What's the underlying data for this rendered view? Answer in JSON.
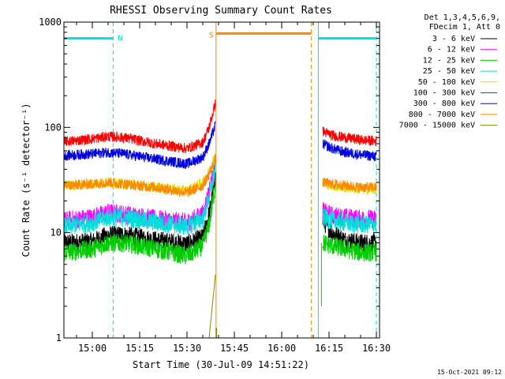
{
  "chart_data": {
    "type": "line",
    "title": "RHESSI Observing Summary Count Rates",
    "xlabel": "Start Time (30-Jul-09 14:51:22)",
    "ylabel": "Count Rate (s⁻¹ detector⁻¹)",
    "y_scale": "log",
    "ylim": [
      1,
      1000
    ],
    "xlim_minutes": [
      891,
      991
    ],
    "x_ticks": [
      {
        "label": "15:00",
        "minute": 900
      },
      {
        "label": "15:15",
        "minute": 915
      },
      {
        "label": "15:30",
        "minute": 930
      },
      {
        "label": "15:45",
        "minute": 945
      },
      {
        "label": "16:00",
        "minute": 960
      },
      {
        "label": "16:15",
        "minute": 975
      },
      {
        "label": "16:30",
        "minute": 990
      }
    ],
    "y_ticks": [
      {
        "label": "1",
        "value": 1
      },
      {
        "label": "10",
        "value": 10
      },
      {
        "label": "100",
        "value": 100
      },
      {
        "label": "1000",
        "value": 1000
      }
    ],
    "legend_header": [
      "Det 1,3,4,5,6,9,",
      "FDecim 1, Att 0"
    ],
    "legend_position": "top-right-outside",
    "series": [
      {
        "name": "3 - 6 keV",
        "color": "#000000",
        "x": [
          891,
          900,
          905,
          910,
          920,
          930,
          935,
          937,
          939,
          973,
          976,
          980,
          985,
          990
        ],
        "y": [
          8,
          8.2,
          9.5,
          9.5,
          8.5,
          7.8,
          9,
          15,
          33,
          13,
          10,
          8.5,
          8,
          8
        ]
      },
      {
        "name": "6 - 12 keV",
        "color": "#ff00ff",
        "x": [
          891,
          900,
          905,
          910,
          920,
          930,
          935,
          937,
          939,
          973,
          976,
          980,
          985,
          990
        ],
        "y": [
          13,
          14,
          15.5,
          15,
          13.5,
          12.5,
          15,
          25,
          42,
          16,
          14.5,
          14,
          13.5,
          13.5
        ]
      },
      {
        "name": "12 - 25 keV",
        "color": "#00cc00",
        "x": [
          891,
          900,
          905,
          910,
          920,
          930,
          935,
          937,
          939,
          973,
          976,
          980,
          985,
          990
        ],
        "y": [
          6.5,
          7,
          8,
          8,
          7,
          6,
          7.5,
          12,
          28,
          8,
          7.5,
          7,
          6.5,
          6.5
        ]
      },
      {
        "name": "25 - 50 keV",
        "color": "#00dddd",
        "x": [
          891,
          900,
          905,
          910,
          920,
          930,
          935,
          937,
          939,
          973,
          976,
          980,
          985,
          990
        ],
        "y": [
          11.5,
          12.5,
          14,
          14,
          12.5,
          11.5,
          13.5,
          22,
          40,
          14,
          13,
          12.5,
          12,
          12
        ]
      },
      {
        "name": "50 - 100 keV",
        "color": "#dddd00",
        "x": [
          891,
          900,
          905,
          910,
          920,
          930,
          935,
          937,
          939,
          973,
          976,
          980,
          985,
          990
        ],
        "y": [
          28,
          29,
          30,
          29,
          27,
          25,
          30,
          38,
          55,
          30,
          28,
          27,
          26,
          26
        ]
      },
      {
        "name": "100 - 300 keV",
        "color": "#ff0000",
        "x": [
          891,
          900,
          905,
          910,
          920,
          930,
          935,
          937,
          939,
          973,
          976,
          980,
          985,
          990
        ],
        "y": [
          73,
          78,
          82,
          80,
          70,
          63,
          72,
          100,
          170,
          92,
          84,
          80,
          76,
          74
        ]
      },
      {
        "name": "300 - 800 keV",
        "color": "#0000dd",
        "x": [
          891,
          900,
          905,
          910,
          920,
          930,
          935,
          937,
          939,
          973,
          976,
          980,
          985,
          990
        ],
        "y": [
          54,
          56,
          58,
          56,
          50,
          45,
          52,
          70,
          105,
          70,
          63,
          58,
          55,
          53
        ]
      },
      {
        "name": "800 - 7000 keV",
        "color": "#ff8800",
        "x": [
          891,
          900,
          905,
          910,
          920,
          930,
          935,
          937,
          939,
          973,
          976,
          980,
          985,
          990
        ],
        "y": [
          28,
          29,
          30,
          29,
          27,
          24,
          28,
          36,
          50,
          30,
          29,
          28,
          27,
          27
        ]
      },
      {
        "name": "7000 - 15000 keV",
        "color": "#888800",
        "x": [
          937,
          938,
          939
        ],
        "y": [
          1,
          2,
          4
        ]
      }
    ],
    "attenuator_ticks": [
      {
        "minute": 939.2
      },
      {
        "minute": 939.4
      }
    ],
    "annotations": [
      {
        "label": "N",
        "color": "#00dddd",
        "kind": "night",
        "start_minute": 891,
        "end_minute": 906.6
      },
      {
        "label": "",
        "color": "#00dddd",
        "kind": "night",
        "start_minute": 971.6,
        "end_minute": 990
      },
      {
        "label": "S",
        "color": "#ff8800",
        "kind": "saa",
        "start_minute": 939.2,
        "end_minute": 969.4
      }
    ],
    "gap": {
      "start_minute": 939.2,
      "end_minute": 972.6
    }
  },
  "footer_date": "15-Oct-2021 09:12"
}
